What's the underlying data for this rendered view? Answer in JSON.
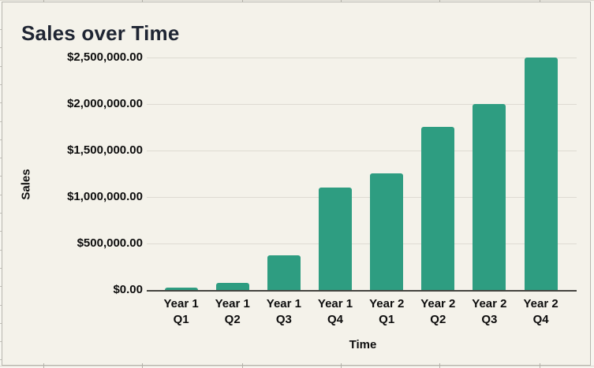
{
  "chart_data": {
    "type": "bar",
    "title": "Sales over Time",
    "xlabel": "Time",
    "ylabel": "Sales",
    "categories": [
      "Year 1 Q1",
      "Year 1 Q2",
      "Year 1 Q3",
      "Year 1 Q4",
      "Year 2 Q1",
      "Year 2 Q2",
      "Year 2 Q3",
      "Year 2 Q4"
    ],
    "category_lines": [
      [
        "Year 1",
        "Q1"
      ],
      [
        "Year 1",
        "Q2"
      ],
      [
        "Year 1",
        "Q3"
      ],
      [
        "Year 1",
        "Q4"
      ],
      [
        "Year 2",
        "Q1"
      ],
      [
        "Year 2",
        "Q2"
      ],
      [
        "Year 2",
        "Q3"
      ],
      [
        "Year 2",
        "Q4"
      ]
    ],
    "values": [
      25000,
      75000,
      375000,
      1100000,
      1250000,
      1750000,
      2000000,
      2500000
    ],
    "ylim": [
      0,
      2500000
    ],
    "ytick_interval": 500000,
    "ytick_labels": [
      "$0.00",
      "$500,000.00",
      "$1,000,000.00",
      "$1,500,000.00",
      "$2,000,000.00",
      "$2,500,000.00"
    ],
    "grid": true,
    "legend": "none",
    "data_labels": false,
    "colors": {
      "bar": "#2e9d81",
      "title": "#1f2533",
      "background": "#f4f2ea",
      "gridline": "#dedbd2",
      "axis_line": "#45443f",
      "tick_label": "#0d0d0d",
      "frame_border": "#b7b5ae"
    }
  }
}
